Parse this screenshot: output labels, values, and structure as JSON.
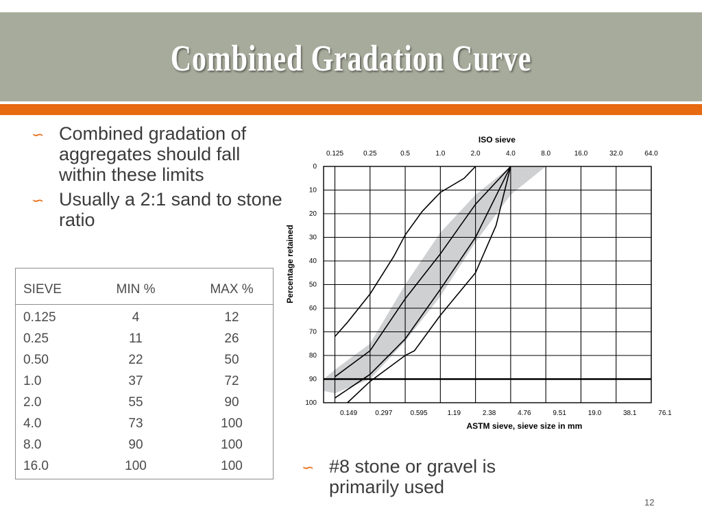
{
  "slide": {
    "title": "Combined Gradation Curve",
    "page_number": "12",
    "colors": {
      "title_bar": "#a7ab9b",
      "accent": "#e86a10",
      "text": "#3b3b3b"
    }
  },
  "bullets_top": [
    "Combined gradation of aggregates should fall within these limits",
    "Usually a 2:1 sand to stone ratio"
  ],
  "bullets_bottom": [
    "#8 stone or gravel is primarily used"
  ],
  "table": {
    "headers": [
      "SIEVE",
      "MIN %",
      "MAX %"
    ],
    "rows": [
      [
        "0.125",
        "4",
        "12"
      ],
      [
        "0.25",
        "11",
        "26"
      ],
      [
        "0.50",
        "22",
        "50"
      ],
      [
        "1.0",
        "37",
        "72"
      ],
      [
        "2.0",
        "55",
        "90"
      ],
      [
        "4.0",
        "73",
        "100"
      ],
      [
        "8.0",
        "90",
        "100"
      ],
      [
        "16.0",
        "100",
        "100"
      ]
    ]
  },
  "chart_data": {
    "type": "line",
    "title": "ISO sieve",
    "xlabel": "ASTM sieve, sieve size in mm",
    "ylabel": "Percentage retained",
    "top_ticks": [
      "0.125",
      "0.25",
      "0.5",
      "1.0",
      "2.0",
      "4.0",
      "8.0",
      "16.0",
      "32.0",
      "64.0"
    ],
    "bottom_ticks": [
      "0.149",
      "0.297",
      "0.595",
      "1.19",
      "2.38",
      "4.76",
      "9.51",
      "19.0",
      "38.1",
      "76.1"
    ],
    "yticks": [
      "0",
      "10",
      "20",
      "30",
      "40",
      "50",
      "60",
      "70",
      "80",
      "90",
      "100"
    ],
    "ylim": [
      0,
      100
    ],
    "x_scale": "log",
    "y_axis_direction": "down",
    "grid": true,
    "shaded_band": {
      "color": "#cfd0d2",
      "upper_edge": [
        [
          0.1,
          90
        ],
        [
          0.125,
          86
        ],
        [
          0.25,
          75
        ],
        [
          0.5,
          50
        ],
        [
          1.0,
          28
        ],
        [
          2.0,
          12
        ],
        [
          4.0,
          0
        ],
        [
          16.0,
          0
        ]
      ],
      "lower_edge": [
        [
          0.1,
          95
        ],
        [
          0.125,
          96
        ],
        [
          0.25,
          90
        ],
        [
          0.5,
          74
        ],
        [
          1.0,
          55
        ],
        [
          2.0,
          32
        ],
        [
          4.0,
          12
        ],
        [
          8.0,
          0
        ]
      ]
    },
    "series": [
      {
        "values": [
          [
            0.125,
            72
          ],
          [
            0.16,
            66
          ],
          [
            0.25,
            54
          ],
          [
            0.4,
            38
          ],
          [
            0.5,
            29
          ],
          [
            0.7,
            19
          ],
          [
            1.0,
            11
          ],
          [
            1.6,
            5
          ],
          [
            2.0,
            0
          ]
        ]
      },
      {
        "values": [
          [
            0.125,
            89
          ],
          [
            0.25,
            78
          ],
          [
            0.5,
            56
          ],
          [
            1.0,
            37
          ],
          [
            2.0,
            16
          ],
          [
            4.0,
            0
          ]
        ]
      },
      {
        "values": [
          [
            0.125,
            98
          ],
          [
            0.25,
            88
          ],
          [
            0.5,
            73
          ],
          [
            1.0,
            52
          ],
          [
            2.0,
            30
          ],
          [
            4.0,
            0
          ]
        ]
      },
      {
        "values": [
          [
            0.16,
            100
          ],
          [
            0.25,
            91
          ],
          [
            0.5,
            80
          ],
          [
            0.6,
            78
          ],
          [
            1.0,
            63
          ],
          [
            2.0,
            45
          ],
          [
            3.0,
            25
          ],
          [
            4.0,
            0
          ]
        ]
      }
    ]
  }
}
